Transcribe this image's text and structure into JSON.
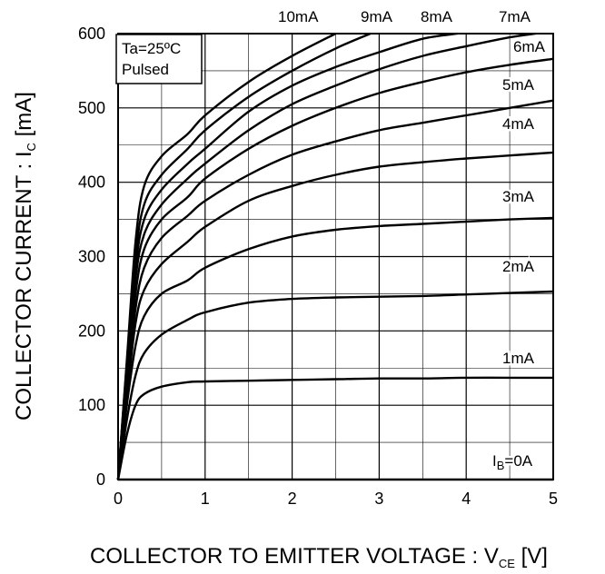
{
  "chart_data": {
    "type": "line",
    "title": "",
    "xlabel": {
      "main": "COLLECTOR TO EMITTER VOLTAGE : V",
      "sub": "CE",
      "unit": " [V]"
    },
    "ylabel": {
      "main": "COLLECTOR CURRENT : I",
      "sub": "C",
      "unit": " [mA]"
    },
    "xlim": [
      0,
      5
    ],
    "ylim": [
      0,
      600
    ],
    "x_ticks": [
      0,
      1,
      2,
      3,
      4,
      5
    ],
    "x_tick_labels": [
      "0",
      "1",
      "2",
      "3",
      "4",
      "5"
    ],
    "y_ticks": [
      0,
      100,
      200,
      300,
      400,
      500,
      600
    ],
    "y_tick_labels": [
      "0",
      "100",
      "200",
      "300",
      "400",
      "500",
      "600"
    ],
    "grid": true,
    "x_minor_step": 0.5,
    "y_minor_step": 50,
    "annotation": [
      "Ta=25ºC",
      "Pulsed"
    ],
    "series": [
      {
        "name": "I_B=0A",
        "label": {
          "main": "I",
          "sub": "B",
          "rest": "=0A"
        },
        "x": [
          0,
          0.5,
          1,
          2,
          3,
          4,
          5
        ],
        "y": [
          0,
          0,
          0,
          0,
          0,
          0,
          0
        ]
      },
      {
        "name": "1mA",
        "label": {
          "main": "1mA"
        },
        "x": [
          0,
          0.1,
          0.2,
          0.3,
          0.5,
          0.8,
          1,
          1.5,
          2,
          2.5,
          3,
          3.5,
          4,
          4.5,
          5
        ],
        "y": [
          0,
          60,
          100,
          115,
          125,
          131,
          132,
          133,
          134,
          135,
          136,
          136,
          137,
          137,
          137
        ]
      },
      {
        "name": "2mA",
        "label": {
          "main": "2mA"
        },
        "x": [
          0,
          0.1,
          0.2,
          0.3,
          0.5,
          0.8,
          1,
          1.5,
          2,
          2.5,
          3,
          3.5,
          4,
          4.5,
          5
        ],
        "y": [
          0,
          80,
          140,
          170,
          195,
          215,
          225,
          238,
          243,
          245,
          246,
          247,
          249,
          251,
          253
        ]
      },
      {
        "name": "3mA",
        "label": {
          "main": "3mA"
        },
        "x": [
          0,
          0.1,
          0.2,
          0.3,
          0.5,
          0.8,
          1,
          1.5,
          2,
          2.5,
          3,
          3.5,
          4,
          4.5,
          5
        ],
        "y": [
          0,
          100,
          180,
          220,
          250,
          268,
          285,
          310,
          327,
          336,
          341,
          344,
          347,
          350,
          352
        ]
      },
      {
        "name": "4mA",
        "label": {
          "main": "4mA"
        },
        "x": [
          0,
          0.1,
          0.2,
          0.3,
          0.5,
          0.8,
          1,
          1.5,
          2,
          2.5,
          3,
          3.5,
          4,
          4.5,
          5
        ],
        "y": [
          0,
          110,
          210,
          255,
          290,
          320,
          340,
          375,
          395,
          410,
          421,
          427,
          432,
          436,
          440
        ]
      },
      {
        "name": "5mA",
        "label": {
          "main": "5mA"
        },
        "x": [
          0,
          0.1,
          0.2,
          0.3,
          0.5,
          0.8,
          1,
          1.5,
          2,
          2.5,
          3,
          3.5,
          4,
          4.5,
          5
        ],
        "y": [
          0,
          120,
          230,
          285,
          325,
          355,
          375,
          410,
          437,
          455,
          470,
          480,
          490,
          500,
          510
        ]
      },
      {
        "name": "6mA",
        "label": {
          "main": "6mA"
        },
        "x": [
          0,
          0.1,
          0.2,
          0.3,
          0.5,
          0.8,
          1,
          1.5,
          2,
          2.5,
          3,
          3.5,
          4,
          4.5,
          5
        ],
        "y": [
          0,
          130,
          250,
          310,
          350,
          380,
          405,
          445,
          476,
          500,
          520,
          535,
          548,
          558,
          566
        ]
      },
      {
        "name": "7mA",
        "label": {
          "main": "7mA"
        },
        "x": [
          0,
          0.1,
          0.2,
          0.3,
          0.5,
          0.8,
          1,
          1.5,
          2,
          2.5,
          3,
          3.5,
          4,
          4.5,
          4.8
        ],
        "y": [
          0,
          140,
          270,
          330,
          370,
          405,
          425,
          470,
          505,
          530,
          552,
          570,
          583,
          595,
          600
        ]
      },
      {
        "name": "8mA",
        "label": {
          "main": "8mA"
        },
        "x": [
          0,
          0.1,
          0.2,
          0.3,
          0.5,
          0.8,
          1,
          1.5,
          2,
          2.5,
          3,
          3.5,
          3.9
        ],
        "y": [
          0,
          150,
          285,
          350,
          390,
          425,
          445,
          495,
          530,
          555,
          575,
          593,
          600
        ]
      },
      {
        "name": "9mA",
        "label": {
          "main": "9mA"
        },
        "x": [
          0,
          0.1,
          0.2,
          0.3,
          0.5,
          0.8,
          1,
          1.5,
          2,
          2.5,
          2.9
        ],
        "y": [
          0,
          155,
          300,
          370,
          410,
          445,
          470,
          515,
          550,
          580,
          600
        ]
      },
      {
        "name": "10mA",
        "label": {
          "main": "10mA"
        },
        "x": [
          0,
          0.1,
          0.2,
          0.3,
          0.5,
          0.8,
          1,
          1.5,
          2,
          2.5
        ],
        "y": [
          0,
          160,
          320,
          395,
          435,
          465,
          490,
          535,
          570,
          600
        ]
      }
    ]
  }
}
